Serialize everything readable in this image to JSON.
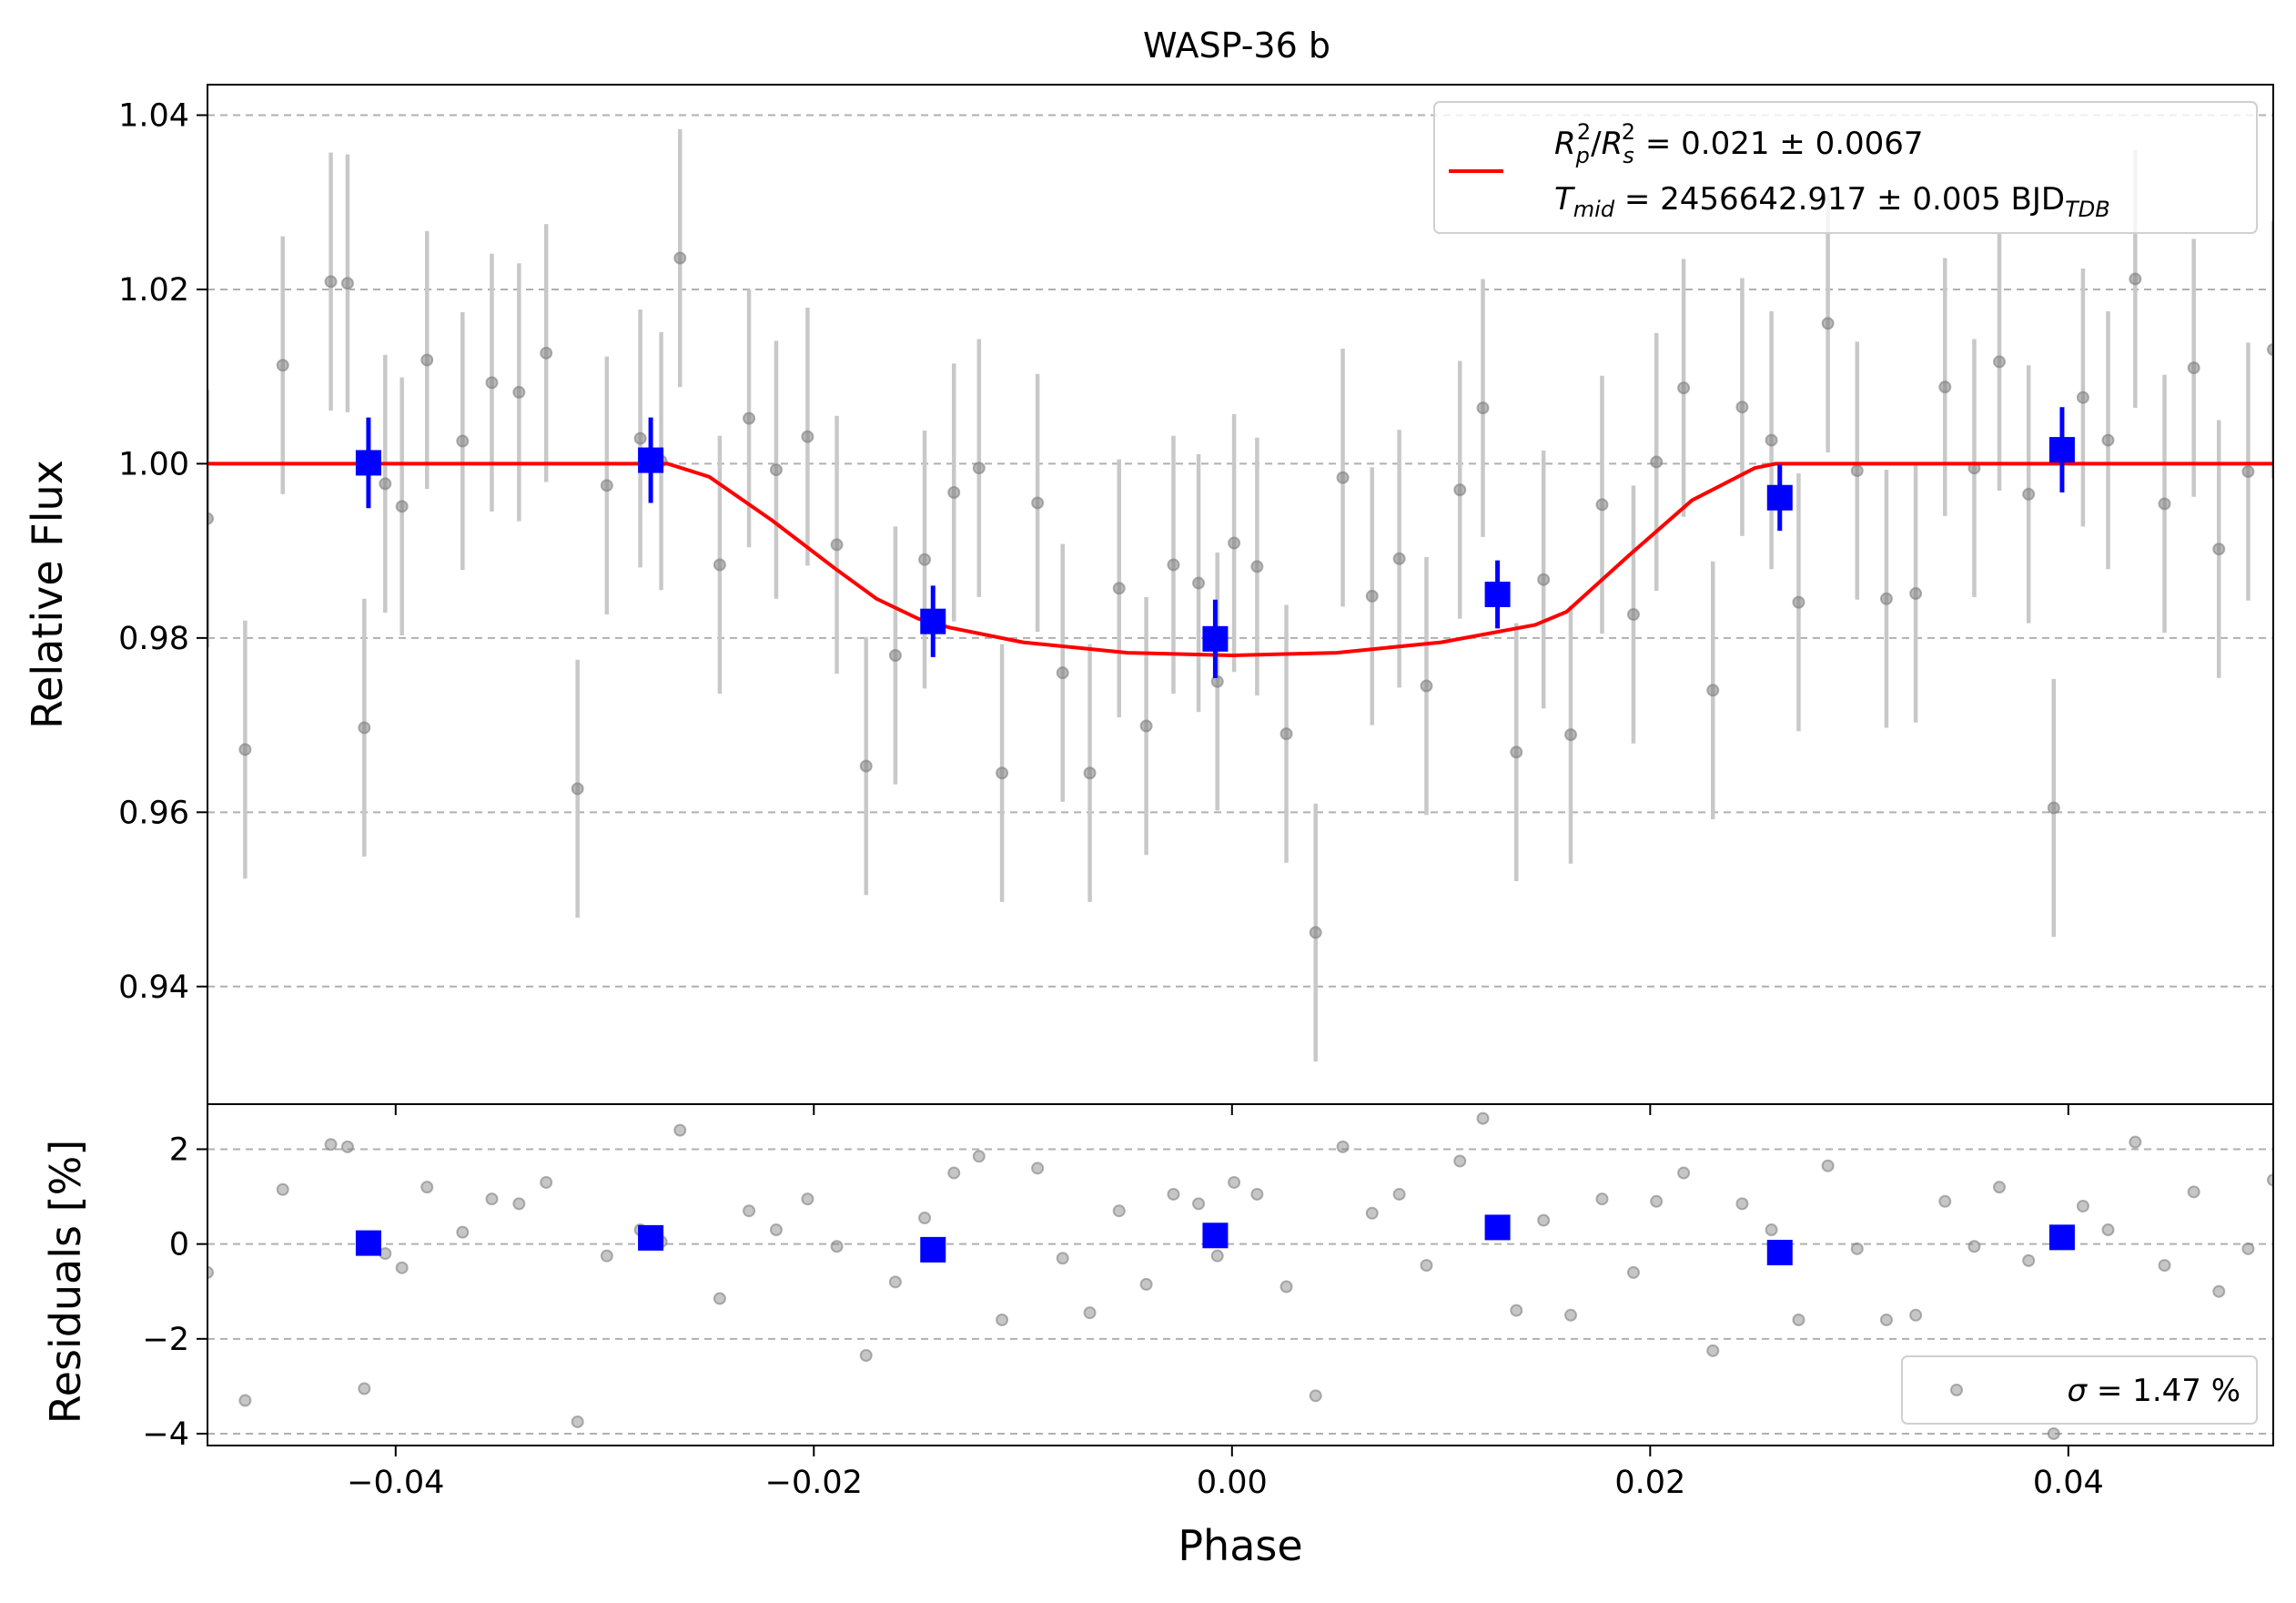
{
  "chart_data": {
    "type": "scatter",
    "title": "WASP-36 b",
    "xlabel": "Phase",
    "xlim": [
      -0.049,
      0.0498
    ],
    "x_ticks": [
      -0.04,
      -0.02,
      0.0,
      0.02,
      0.04
    ],
    "x_tick_labels": [
      "−0.04",
      "−0.02",
      "0.00",
      "0.02",
      "0.04"
    ],
    "colors": {
      "raw": "#808080",
      "raw_err": "#c8c8c8",
      "binned": "#0000ff",
      "model": "#ff0000",
      "grid": "#b0b0b0"
    },
    "grid": true,
    "top_panel": {
      "ylabel": "Relative Flux",
      "ylim": [
        0.9265,
        1.0435
      ],
      "y_ticks": [
        0.94,
        0.96,
        0.98,
        1.0,
        1.02,
        1.04
      ],
      "y_tick_labels": [
        "0.94",
        "0.96",
        "0.98",
        "1.00",
        "1.02",
        "1.04"
      ],
      "series": [
        {
          "role": "raw",
          "x": [
            -0.049,
            -0.0472,
            -0.0454,
            -0.0431,
            -0.0423,
            -0.0415,
            -0.0405,
            -0.0397,
            -0.0385,
            -0.0368,
            -0.0354,
            -0.0341,
            -0.0328,
            -0.0313,
            -0.0299,
            -0.0283,
            -0.0273,
            -0.0264,
            -0.0245,
            -0.0231,
            -0.0218,
            -0.0203,
            -0.0189,
            -0.0175,
            -0.0161,
            -0.0147,
            -0.0133,
            -0.0121,
            -0.011,
            -0.0093,
            -0.0081,
            -0.0068,
            -0.0054,
            -0.0041,
            -0.0028,
            -0.0016,
            -0.0007,
            0.0001,
            0.0012,
            0.0026,
            0.004,
            0.0053,
            0.0067,
            0.008,
            0.0093,
            0.0109,
            0.012,
            0.0136,
            0.0149,
            0.0162,
            0.0177,
            0.0192,
            0.0203,
            0.0216,
            0.023,
            0.0244,
            0.0258,
            0.0271,
            0.0285,
            0.0299,
            0.0313,
            0.0327,
            0.0341,
            0.0355,
            0.0367,
            0.0381,
            0.0393,
            0.0407,
            0.0419,
            0.0432,
            0.0446,
            0.046,
            0.0472,
            0.0486,
            0.0498
          ],
          "y": [
            0.9937,
            0.9672,
            1.0113,
            1.0209,
            1.0207,
            0.9697,
            0.9977,
            0.9951,
            1.0119,
            1.0026,
            1.0093,
            1.0082,
            1.0127,
            0.9627,
            0.9975,
            1.0029,
            1.0003,
            1.0236,
            0.9884,
            1.0052,
            0.9993,
            1.0031,
            0.9907,
            0.9653,
            0.978,
            0.989,
            0.9967,
            0.9995,
            0.9645,
            0.9955,
            0.976,
            0.9645,
            0.9857,
            0.9699,
            0.9884,
            0.9863,
            0.975,
            0.9909,
            0.9882,
            0.969,
            0.9462,
            0.9984,
            0.9848,
            0.9891,
            0.9745,
            0.997,
            1.0064,
            0.9669,
            0.9867,
            0.9689,
            0.9953,
            0.9827,
            1.0002,
            1.0087,
            0.974,
            1.0065,
            1.0027,
            0.9841,
            1.0161,
            0.9992,
            0.9845,
            0.9851,
            1.0088,
            0.9995,
            1.0117,
            0.9965,
            0.9605,
            1.0076,
            1.0027,
            1.0212,
            0.9954,
            1.011,
            0.9902,
            0.9991,
            1.0131
          ],
          "yerr": 0.0148
        },
        {
          "role": "binned",
          "x": [
            -0.0413,
            -0.0278,
            -0.0143,
            -0.0008,
            0.0127,
            0.0262,
            0.0397
          ],
          "y": [
            1.0001,
            1.0004,
            0.9819,
            0.9799,
            0.985,
            0.9961,
            1.0016
          ],
          "yerr": [
            0.0052,
            0.0049,
            0.0041,
            0.0045,
            0.0039,
            0.0038,
            0.0049
          ]
        }
      ],
      "model": {
        "name": "R_p^2/R_s^2 = 0.021 ± 0.0067, T_mid = 2456642.917 ± 0.005 BJD_TDB",
        "x": [
          -0.049,
          -0.027,
          -0.025,
          -0.022,
          -0.019,
          -0.017,
          -0.015,
          -0.0135,
          -0.01,
          -0.005,
          0.0,
          0.005,
          0.01,
          0.0145,
          0.016,
          0.019,
          0.022,
          0.025,
          0.026,
          0.0498
        ],
        "y": [
          1.0,
          1.0,
          0.9985,
          0.9935,
          0.988,
          0.9845,
          0.9822,
          0.9812,
          0.9795,
          0.9783,
          0.978,
          0.9783,
          0.9795,
          0.9815,
          0.983,
          0.9895,
          0.9958,
          0.9995,
          1.0,
          1.0
        ]
      },
      "legend": {
        "placement": "upper right",
        "line1": {
          "a": "R",
          "b": "p",
          "c": "2",
          "d": "/",
          "e": "R",
          "f": "s",
          "g": "2",
          "h": " = 0.021 ± 0.0067"
        },
        "line2": {
          "a": "T",
          "b": "mid",
          "c": " = 2456642.917 ± 0.005 BJD",
          "d": "TDB"
        }
      }
    },
    "bottom_panel": {
      "ylabel": "Residuals [%]",
      "ylim": [
        -4.25,
        2.95
      ],
      "y_ticks": [
        -4,
        -2,
        0,
        2
      ],
      "y_tick_labels": [
        "−4",
        "−2",
        "0",
        "2"
      ],
      "series": [
        {
          "role": "raw",
          "x": [
            -0.049,
            -0.0472,
            -0.0454,
            -0.0431,
            -0.0423,
            -0.0415,
            -0.0405,
            -0.0397,
            -0.0385,
            -0.0368,
            -0.0354,
            -0.0341,
            -0.0328,
            -0.0313,
            -0.0299,
            -0.0283,
            -0.0273,
            -0.0264,
            -0.0245,
            -0.0231,
            -0.0218,
            -0.0203,
            -0.0189,
            -0.0175,
            -0.0161,
            -0.0147,
            -0.0133,
            -0.0121,
            -0.011,
            -0.0093,
            -0.0081,
            -0.0068,
            -0.0054,
            -0.0041,
            -0.0028,
            -0.0016,
            -0.0007,
            0.0001,
            0.0012,
            0.0026,
            0.004,
            0.0053,
            0.0067,
            0.008,
            0.0093,
            0.0109,
            0.012,
            0.0136,
            0.0149,
            0.0162,
            0.0177,
            0.0192,
            0.0203,
            0.0216,
            0.023,
            0.0244,
            0.0258,
            0.0271,
            0.0285,
            0.0299,
            0.0313,
            0.0327,
            0.0341,
            0.0355,
            0.0367,
            0.0381,
            0.0393,
            0.0407,
            0.0419,
            0.0432,
            0.0446,
            0.046,
            0.0472,
            0.0486,
            0.0498
          ],
          "y": [
            -0.6,
            -3.3,
            1.15,
            2.1,
            2.05,
            -3.05,
            -0.2,
            -0.5,
            1.2,
            0.25,
            0.95,
            0.85,
            1.3,
            -3.75,
            -0.25,
            0.3,
            0.05,
            2.4,
            -1.15,
            0.7,
            0.3,
            0.95,
            -0.05,
            -2.35,
            -0.8,
            0.55,
            1.5,
            1.85,
            -1.6,
            1.6,
            -0.3,
            -1.45,
            0.7,
            -0.85,
            1.05,
            0.85,
            -0.25,
            1.3,
            1.05,
            -0.9,
            -3.2,
            2.05,
            0.65,
            1.05,
            -0.45,
            1.75,
            2.65,
            -1.4,
            0.5,
            -1.5,
            0.95,
            -0.6,
            0.9,
            1.5,
            -2.25,
            0.85,
            0.3,
            -1.6,
            1.65,
            -0.1,
            -1.6,
            -1.5,
            0.9,
            -0.05,
            1.2,
            -0.35,
            -4.0,
            0.8,
            0.3,
            2.15,
            -0.45,
            1.1,
            -1.0,
            -0.1,
            1.35
          ]
        },
        {
          "role": "binned",
          "x": [
            -0.0413,
            -0.0278,
            -0.0143,
            -0.0008,
            0.0127,
            0.0262,
            0.0397
          ],
          "y": [
            0.02,
            0.13,
            -0.12,
            0.18,
            0.35,
            -0.18,
            0.14
          ]
        }
      ],
      "legend": {
        "placement": "lower right",
        "sigma_symbol": "σ",
        "text": " = 1.47 %"
      }
    }
  }
}
